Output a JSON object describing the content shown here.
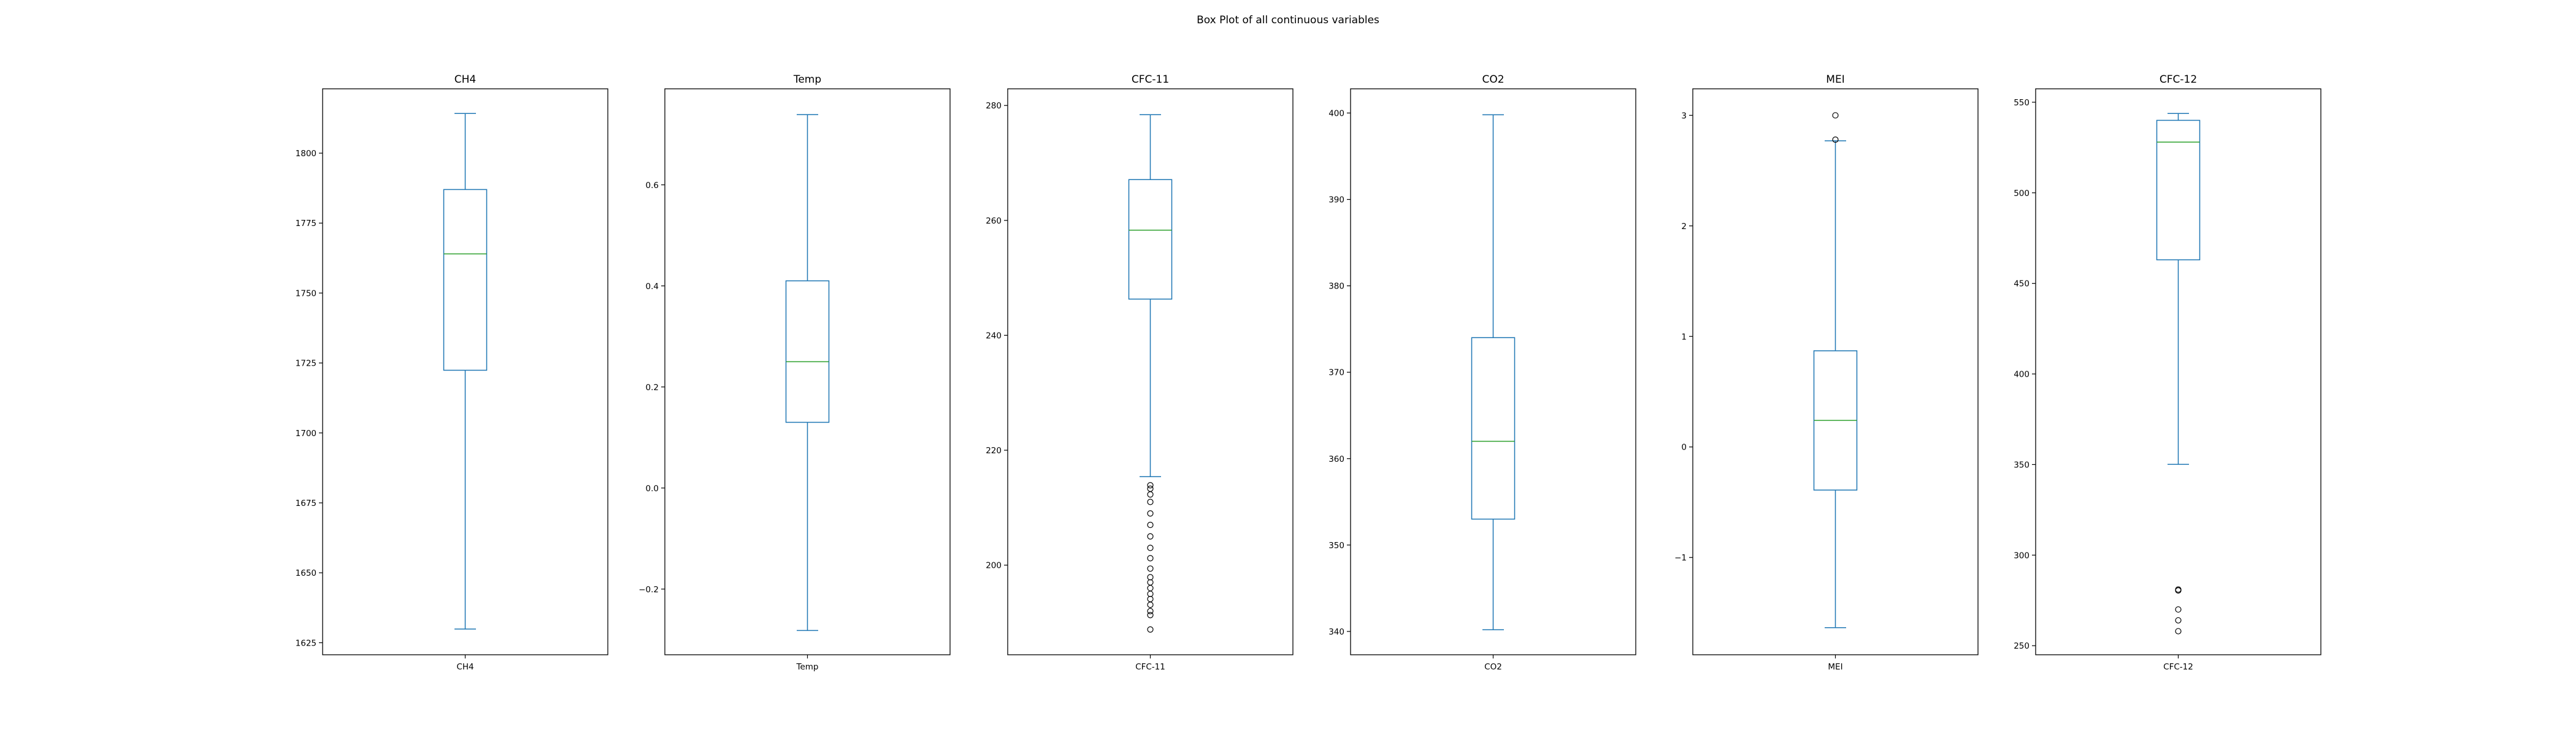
{
  "figure": {
    "title": "Box Plot of all continuous variables"
  },
  "style": {
    "box_color": "#1f77b4",
    "median_color": "#2ca02c",
    "flier_color": "#000000",
    "axes_color": "#000000"
  },
  "chart_data": [
    {
      "type": "box",
      "title": "CH4",
      "xlabel": "CH4",
      "ylim": [
        1620.7,
        1823.0
      ],
      "yticks": [
        1625,
        1650,
        1675,
        1700,
        1725,
        1750,
        1775,
        1800
      ],
      "ytick_labels": [
        "1625",
        "1650",
        "1675",
        "1700",
        "1725",
        "1750",
        "1775",
        "1800"
      ],
      "whisker_low": 1629.9,
      "q1": 1722.4,
      "median": 1764.0,
      "q3": 1787.0,
      "whisker_high": 1814.2,
      "outliers": []
    },
    {
      "type": "box",
      "title": "Temp",
      "xlabel": "Temp",
      "ylim": [
        -0.33,
        0.79
      ],
      "yticks": [
        -0.2,
        0.0,
        0.2,
        0.4,
        0.6
      ],
      "ytick_labels": [
        "−0.2",
        "0.0",
        "0.2",
        "0.4",
        "0.6"
      ],
      "whisker_low": -0.282,
      "q1": 0.13,
      "median": 0.25,
      "q3": 0.41,
      "whisker_high": 0.739,
      "outliers": []
    },
    {
      "type": "box",
      "title": "CFC-11",
      "xlabel": "CFC-11",
      "ylim": [
        184.4,
        282.9
      ],
      "yticks": [
        200,
        220,
        240,
        260,
        280
      ],
      "ytick_labels": [
        "200",
        "220",
        "240",
        "260",
        "280"
      ],
      "whisker_low": 215.4,
      "q1": 246.3,
      "median": 258.3,
      "q3": 267.1,
      "whisker_high": 278.4,
      "outliers": [
        213.9,
        213.3,
        212.3,
        211.0,
        209.0,
        207.0,
        205.0,
        203.0,
        201.2,
        199.4,
        197.9,
        197.0,
        196.0,
        195.0,
        194.1,
        193.1,
        192.0,
        191.3,
        188.8
      ]
    },
    {
      "type": "box",
      "title": "CO2",
      "xlabel": "CO2",
      "ylim": [
        337.3,
        402.8
      ],
      "yticks": [
        340,
        350,
        360,
        370,
        380,
        390,
        400
      ],
      "ytick_labels": [
        "340",
        "350",
        "360",
        "370",
        "380",
        "390",
        "400"
      ],
      "whisker_low": 340.2,
      "q1": 353.0,
      "median": 362.0,
      "q3": 374.0,
      "whisker_high": 399.8,
      "outliers": []
    },
    {
      "type": "box",
      "title": "MEI",
      "xlabel": "MEI",
      "ylim": [
        -1.88,
        3.24
      ],
      "yticks": [
        -1,
        0,
        1,
        2,
        3
      ],
      "ytick_labels": [
        "−1",
        "0",
        "1",
        "2",
        "3"
      ],
      "whisker_low": -1.635,
      "q1": -0.39,
      "median": 0.24,
      "q3": 0.87,
      "whisker_high": 2.77,
      "outliers": [
        2.78,
        3.0
      ]
    },
    {
      "type": "box",
      "title": "CFC-12",
      "xlabel": "CFC-12",
      "ylim": [
        245.0,
        557.4
      ],
      "yticks": [
        250,
        300,
        350,
        400,
        450,
        500,
        550
      ],
      "ytick_labels": [
        "250",
        "300",
        "350",
        "400",
        "450",
        "500",
        "550"
      ],
      "whisker_low": 350.1,
      "q1": 463.0,
      "median": 528.0,
      "q3": 540.0,
      "whisker_high": 543.8,
      "outliers": [
        281.0,
        280.5,
        270.0,
        264.0,
        258.0
      ]
    }
  ]
}
